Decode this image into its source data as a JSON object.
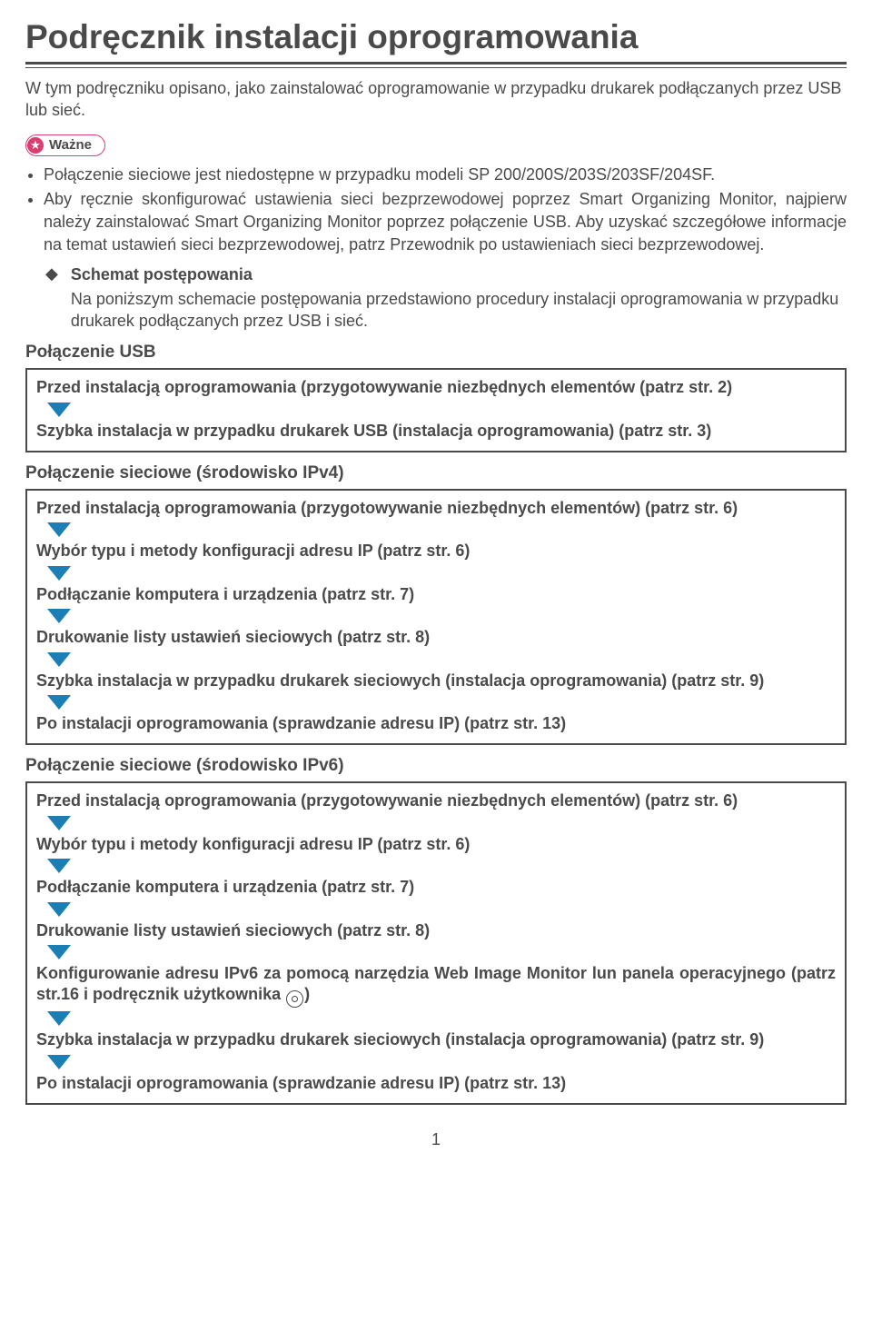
{
  "title": "Podręcznik instalacji oprogramowania",
  "intro": "W tym podręczniku opisano, jako zainstalować oprogramowanie w przypadku drukarek podłączanych przez USB lub sieć.",
  "wazne_label": "Ważne",
  "bullets": [
    "Połączenie sieciowe jest niedostępne w przypadku modeli SP 200/200S/203S/203SF/204SF.",
    "Aby ręcznie skonfigurować ustawienia sieci bezprzewodowej poprzez Smart Organizing Monitor, najpierw należy zainstalować Smart Organizing Monitor poprzez połączenie USB. Aby uzyskać szczegółowe informacje na temat ustawień sieci bezprzewodowej, patrz Przewodnik po ustawieniach sieci bezprzewodowej."
  ],
  "schema": {
    "title": "Schemat postępowania",
    "text": "Na poniższym schemacie postępowania przedstawiono procedury instalacji oprogramowania w przypadku drukarek podłączanych przez USB i sieć."
  },
  "arrow_color": "#1b7fb5",
  "sections": [
    {
      "heading": "Połączenie USB",
      "steps": [
        "Przed instalacją oprogramowania (przygotowywanie niezbędnych elementów (patrz str. 2)",
        "Szybka instalacja w przypadku drukarek USB (instalacja oprogramowania) (patrz str. 3)"
      ]
    },
    {
      "heading": "Połączenie sieciowe (środowisko IPv4)",
      "steps": [
        "Przed instalacją oprogramowania (przygotowywanie niezbędnych elementów) (patrz str. 6)",
        "Wybór typu i metody konfiguracji adresu IP (patrz str. 6)",
        "Podłączanie komputera i urządzenia (patrz str. 7)",
        "Drukowanie listy ustawień sieciowych (patrz str. 8)",
        "Szybka instalacja w przypadku drukarek sieciowych (instalacja oprogramowania) (patrz str. 9)",
        "Po instalacji oprogramowania (sprawdzanie adresu IP) (patrz str. 13)"
      ]
    },
    {
      "heading": "Połączenie sieciowe (środowisko IPv6)",
      "steps": [
        "Przed instalacją oprogramowania (przygotowywanie niezbędnych elementów) (patrz str. 6)",
        "Wybór typu i metody konfiguracji adresu IP (patrz str. 6)",
        "Podłączanie komputera i urządzenia (patrz str. 7)",
        "Drukowanie listy ustawień sieciowych (patrz str. 8)",
        {
          "pre": "Konfigurowanie adresu IPv6 za pomocą narzędzia Web Image Monitor lun panela operacyjnego (patrz str.16 i podręcznik użytkownika ",
          "icon": "disc",
          "post": ")"
        },
        "Szybka instalacja w przypadku drukarek sieciowych (instalacja oprogramowania) (patrz str. 9)",
        "Po instalacji oprogramowania (sprawdzanie adresu IP) (patrz str. 13)"
      ]
    }
  ],
  "page_number": "1"
}
